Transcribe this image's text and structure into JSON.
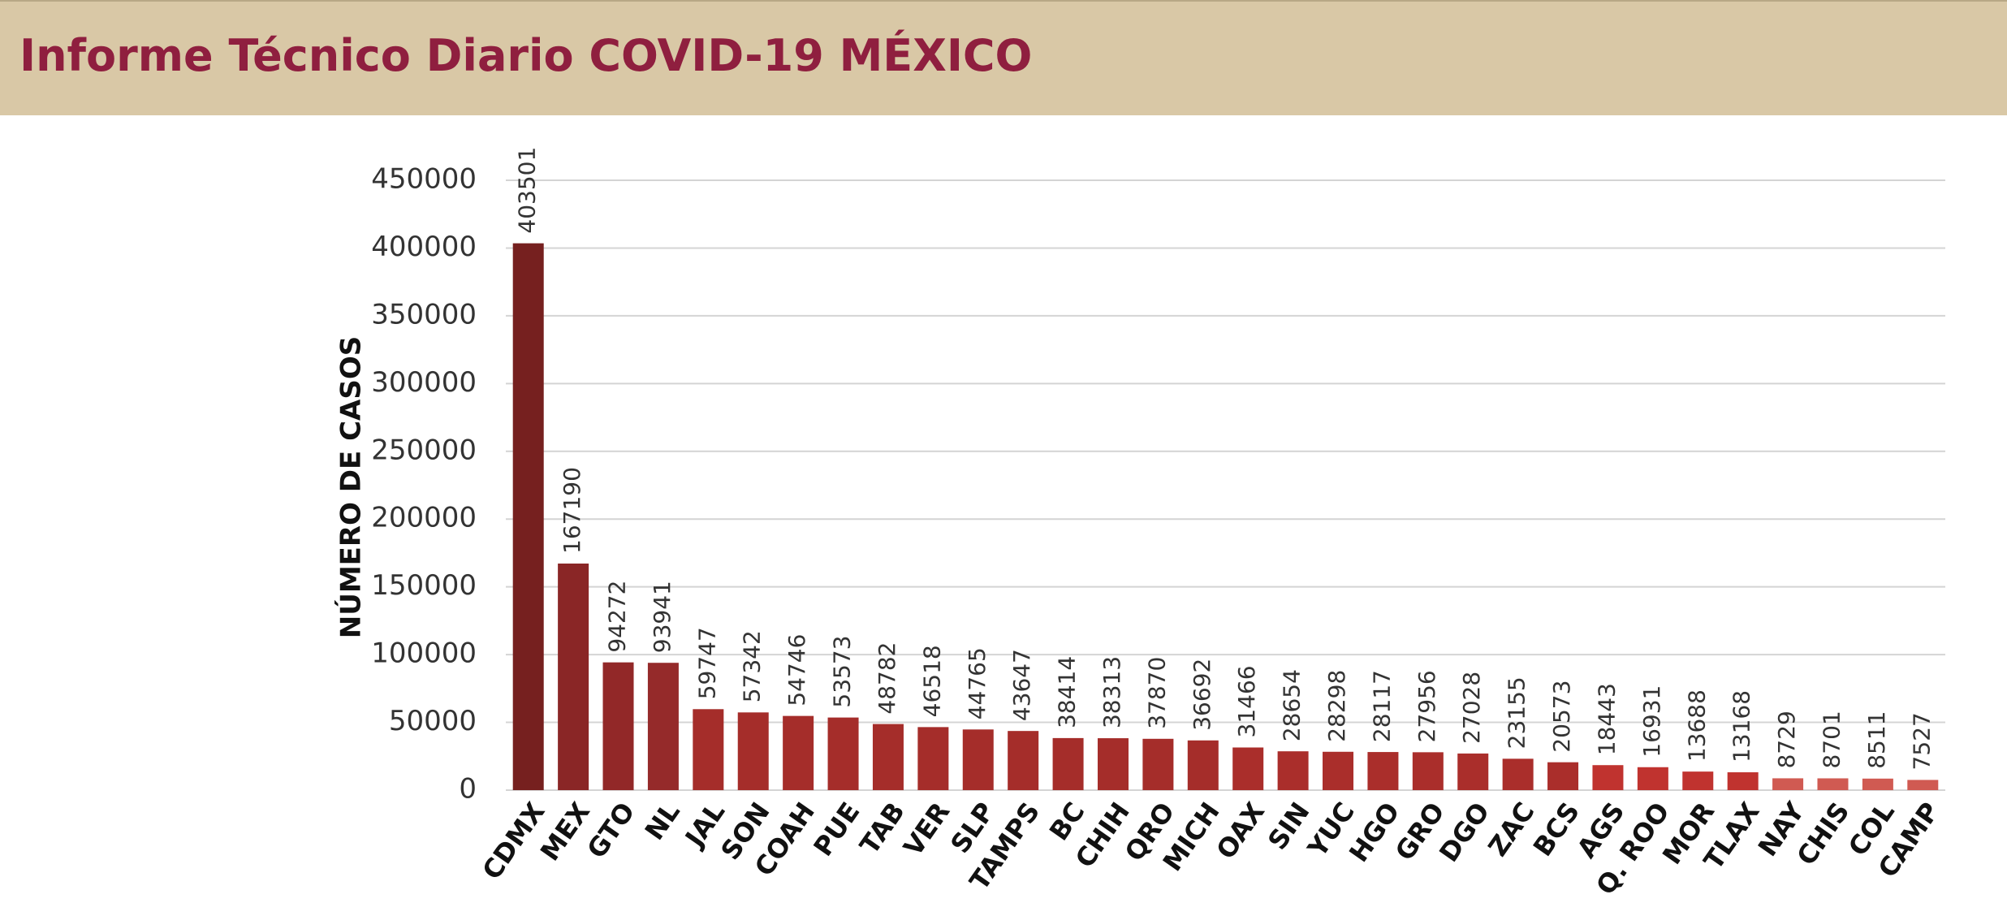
{
  "header": {
    "title": "Informe Técnico Diario COVID-19 MÉXICO"
  },
  "chart_data": {
    "type": "bar",
    "y_label": "NÚMERO DE CASOS",
    "categories": [
      "CDMX",
      "MEX",
      "GTO",
      "NL",
      "JAL",
      "SON",
      "COAH",
      "PUE",
      "TAB",
      "VER",
      "SLP",
      "TAMPS",
      "BC",
      "CHIH",
      "QRO",
      "MICH",
      "OAX",
      "SIN",
      "YUC",
      "HGO",
      "GRO",
      "DGO",
      "ZAC",
      "BCS",
      "AGS",
      "Q. ROO",
      "MOR",
      "TLAX",
      "NAY",
      "CHIS",
      "COL",
      "CAMP"
    ],
    "values": [
      403501,
      167190,
      94272,
      93941,
      59747,
      57342,
      54746,
      53573,
      48782,
      46518,
      44765,
      43647,
      38414,
      38313,
      37870,
      36692,
      31466,
      28654,
      28298,
      28117,
      27956,
      27028,
      23155,
      20573,
      18443,
      16931,
      13688,
      13168,
      8729,
      8701,
      8511,
      7527
    ],
    "colors": [
      "#76201f",
      "#8a2626",
      "#922828",
      "#952a2a",
      "#a52d2a",
      "#a52d2a",
      "#a52d2a",
      "#a52d2a",
      "#a52d2a",
      "#a52d2a",
      "#a52d2a",
      "#a52d2a",
      "#a52d2a",
      "#a52d2a",
      "#a52d2a",
      "#a52d2a",
      "#aa2e2b",
      "#aa2e2b",
      "#aa2e2b",
      "#aa2e2b",
      "#aa2e2b",
      "#aa2e2b",
      "#aa2e2b",
      "#aa2e2b",
      "#c0332f",
      "#c0332f",
      "#c0332f",
      "#c0332f",
      "#d05a52",
      "#d05a52",
      "#d05a52",
      "#d05a52"
    ],
    "ylim": [
      0,
      450000
    ],
    "yticks": [
      0,
      50000,
      100000,
      150000,
      200000,
      250000,
      300000,
      350000,
      400000,
      450000
    ],
    "grid": true
  }
}
